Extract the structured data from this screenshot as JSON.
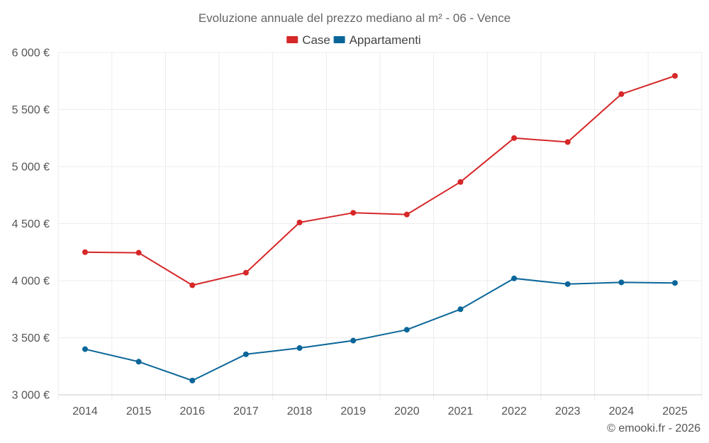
{
  "chart_data": {
    "type": "line",
    "title": "Evoluzione annuale del prezzo mediano al m² - 06 - Vence",
    "xlabel": "",
    "ylabel": "",
    "categories": [
      "2014",
      "2015",
      "2016",
      "2017",
      "2018",
      "2019",
      "2020",
      "2021",
      "2022",
      "2023",
      "2024",
      "2025"
    ],
    "ylim": [
      3000,
      6000
    ],
    "yticks": [
      3000,
      3500,
      4000,
      4500,
      5000,
      5500,
      6000
    ],
    "ytick_labels": [
      "3 000 €",
      "3 500 €",
      "4 000 €",
      "4 500 €",
      "5 000 €",
      "5 500 €",
      "6 000 €"
    ],
    "grid": true,
    "legend_position": "top-center",
    "series": [
      {
        "name": "Case",
        "color": "#d62728",
        "values": [
          4250,
          4245,
          3960,
          4070,
          4510,
          4595,
          4580,
          4865,
          5250,
          5215,
          5635,
          5795
        ]
      },
      {
        "name": "Appartamenti",
        "color": "#0a6699",
        "values": [
          3400,
          3290,
          3125,
          3355,
          3410,
          3475,
          3570,
          3750,
          4020,
          3970,
          3985,
          3980
        ]
      }
    ]
  },
  "credit": "© emooki.fr - 2026"
}
